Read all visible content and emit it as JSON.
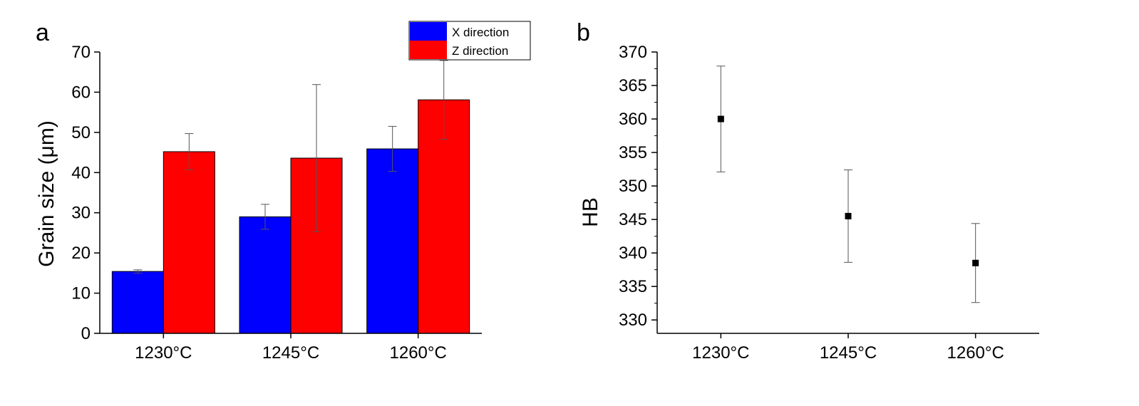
{
  "chart_data": [
    {
      "type": "bar",
      "panel_label": "a",
      "categories": [
        "1230°C",
        "1245°C",
        "1260°C"
      ],
      "series": [
        {
          "name": "X direction",
          "color": "#0000ff",
          "values": [
            15.4,
            29.0,
            45.9
          ],
          "errors": [
            0.4,
            3.1,
            5.6
          ]
        },
        {
          "name": "Z direction",
          "color": "#ff0000",
          "values": [
            45.2,
            43.6,
            58.1
          ],
          "errors": [
            4.5,
            18.3,
            9.8
          ]
        }
      ],
      "xlabel": "",
      "ylabel": "Grain size (μm)",
      "ylim": [
        0,
        70
      ],
      "yticks": [
        "0",
        "10",
        "20",
        "30",
        "40",
        "50",
        "60",
        "70"
      ],
      "legend": "top-right",
      "grid": false
    },
    {
      "type": "scatter",
      "panel_label": "b",
      "categories": [
        "1230°C",
        "1245°C",
        "1260°C"
      ],
      "values": [
        360.0,
        345.5,
        338.5
      ],
      "errors": [
        7.9,
        6.9,
        5.9
      ],
      "marker_color": "#000000",
      "xlabel": "",
      "ylabel": "HB",
      "ylim": [
        328,
        370
      ],
      "yticks": [
        "330",
        "335",
        "340",
        "345",
        "350",
        "355",
        "360",
        "365",
        "370"
      ],
      "grid": false
    }
  ]
}
